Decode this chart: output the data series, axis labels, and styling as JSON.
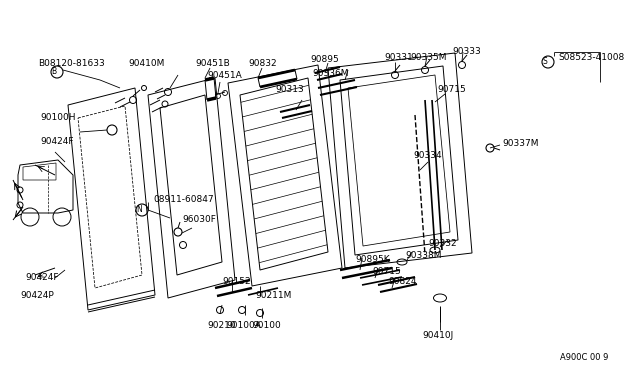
{
  "bg_color": "#ffffff",
  "line_color": "#000000",
  "ref_code": "A900C 00 9",
  "labels": {
    "B_bolt": "B08120-81633",
    "90410M": "90410M",
    "90451B": "90451B",
    "90832": "90832",
    "90895": "90895",
    "90331": "90331",
    "90335M": "90335M",
    "90333": "90333",
    "S_bolt": "S08523-41008",
    "90451A": "90451A",
    "90336M": "90336M",
    "90313": "90313",
    "90100H": "90100H",
    "90424F_top": "90424F",
    "90715_top": "90715",
    "90334": "90334",
    "90337M": "90337M",
    "08911_60847": "08911-60847",
    "96030F": "96030F",
    "90332": "90332",
    "90338M": "90338M",
    "90895K": "90895K",
    "90715_bot": "90715",
    "90824": "90824",
    "90152": "90152",
    "90211M": "90211M",
    "90424F_bot": "90424F",
    "90424P": "90424P",
    "90210": "90210",
    "90100A": "90100A",
    "90100": "90100",
    "90410J": "90410J",
    "N": "N"
  },
  "font_size": 6.5,
  "line_width": 0.7
}
